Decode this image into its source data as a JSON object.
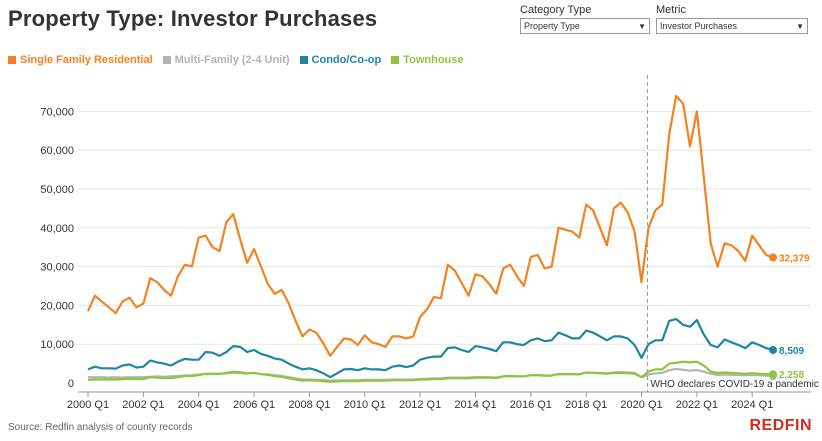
{
  "header": {
    "title": "Property Type: Investor Purchases",
    "category": {
      "label": "Category Type",
      "value": "Property Type"
    },
    "metric": {
      "label": "Metric",
      "value": "Investor Purchases"
    }
  },
  "footer": {
    "source": "Source: Redfin analysis of county records",
    "logo": "REDFIN"
  },
  "chart_data": {
    "type": "line",
    "title": "Property Type: Investor Purchases",
    "x_quarters_start": "2000 Q1",
    "x_tick_labels": [
      "2000 Q1",
      "2002 Q1",
      "2004 Q1",
      "2006 Q1",
      "2008 Q1",
      "2010 Q1",
      "2012 Q1",
      "2014 Q1",
      "2016 Q1",
      "2018 Q1",
      "2020 Q1",
      "2022 Q1",
      "2024 Q1"
    ],
    "y_ticks": [
      0,
      10000,
      20000,
      30000,
      40000,
      50000,
      60000,
      70000
    ],
    "y_tick_labels": [
      "0",
      "10,000",
      "20,000",
      "30,000",
      "40,000",
      "50,000",
      "60,000",
      "70,000"
    ],
    "ylim": [
      0,
      75000
    ],
    "legend_position": "top-left",
    "annotation": {
      "quarter": "2020 Q2",
      "text": "WHO declares COVID-19 a pandemic"
    },
    "series": [
      {
        "name": "Single Family Residential",
        "color": "#f58220",
        "end_label": "32,379",
        "values": [
          18500,
          22500,
          21000,
          19500,
          18000,
          21000,
          22000,
          19500,
          20500,
          27000,
          26000,
          24000,
          22500,
          27500,
          30500,
          30000,
          37500,
          38000,
          35000,
          34000,
          41500,
          43500,
          37000,
          31000,
          34500,
          30000,
          25500,
          23000,
          24000,
          20500,
          16000,
          12000,
          13800,
          13000,
          10200,
          7000,
          9300,
          11500,
          11200,
          9800,
          12300,
          10500,
          10000,
          9300,
          12000,
          12000,
          11500,
          12000,
          17000,
          19000,
          22200,
          21800,
          30500,
          29000,
          25800,
          22500,
          28000,
          27500,
          25500,
          23000,
          29500,
          30500,
          27500,
          25000,
          32500,
          33000,
          29500,
          30000,
          40000,
          39500,
          39000,
          37500,
          46000,
          44500,
          40000,
          35500,
          45000,
          46500,
          44000,
          39000,
          26000,
          40000,
          44500,
          46000,
          64000,
          74000,
          72000,
          61000,
          70000,
          53000,
          36000,
          30000,
          36000,
          35500,
          34000,
          31500,
          38000,
          35500,
          33000,
          32379
        ]
      },
      {
        "name": "Multi-Family (2-4 Unit)",
        "color": "#b3b3b3",
        "end_label": "",
        "values": [
          1500,
          1500,
          1500,
          1400,
          1500,
          1400,
          1500,
          1500,
          1500,
          1600,
          1700,
          1600,
          1700,
          1800,
          1900,
          2000,
          2200,
          2300,
          2300,
          2400,
          2500,
          2600,
          2500,
          2400,
          2600,
          2300,
          2200,
          2000,
          1800,
          1500,
          1200,
          900,
          900,
          800,
          800,
          600,
          700,
          700,
          700,
          700,
          800,
          800,
          800,
          800,
          900,
          900,
          900,
          900,
          1000,
          1100,
          1200,
          1200,
          1400,
          1400,
          1400,
          1400,
          1500,
          1500,
          1500,
          1400,
          1700,
          1800,
          1700,
          1700,
          2000,
          2000,
          1900,
          1900,
          2300,
          2300,
          2300,
          2300,
          2700,
          2600,
          2600,
          2500,
          2700,
          2800,
          2700,
          2600,
          1500,
          2200,
          2500,
          2600,
          3300,
          3600,
          3400,
          3200,
          3300,
          2900,
          2400,
          2100,
          2200,
          2100,
          2100,
          2000,
          2100,
          2000,
          1900,
          1800
        ]
      },
      {
        "name": "Condo/Co-op",
        "color": "#1c87a3",
        "end_label": "8,509",
        "values": [
          3500,
          4200,
          3800,
          3800,
          3700,
          4500,
          4800,
          4000,
          4200,
          5800,
          5300,
          5000,
          4500,
          5500,
          6200,
          6000,
          6000,
          8000,
          7800,
          7000,
          8000,
          9500,
          9300,
          8000,
          8500,
          7500,
          7000,
          6300,
          6000,
          5000,
          4200,
          3500,
          3800,
          3300,
          2500,
          1500,
          2500,
          3500,
          3600,
          3300,
          3800,
          3500,
          3500,
          3300,
          4200,
          4500,
          4100,
          4500,
          6000,
          6500,
          6800,
          6800,
          9000,
          9200,
          8500,
          8000,
          9500,
          9200,
          8800,
          8200,
          10500,
          10500,
          10000,
          9800,
          11000,
          11500,
          10800,
          11000,
          13000,
          12300,
          11500,
          11500,
          13500,
          13000,
          12000,
          11000,
          12000,
          12000,
          11500,
          9800,
          6500,
          10000,
          11000,
          11000,
          16000,
          16500,
          15000,
          14500,
          16200,
          12500,
          9800,
          9200,
          11200,
          10500,
          9800,
          9000,
          10500,
          9800,
          9000,
          8509
        ]
      },
      {
        "name": "Townhouse",
        "color": "#8cc63f",
        "end_label": "2,258",
        "values": [
          800,
          900,
          900,
          900,
          900,
          1000,
          1100,
          1000,
          1000,
          1500,
          1400,
          1300,
          1300,
          1500,
          1800,
          1800,
          2000,
          2400,
          2400,
          2300,
          2600,
          2900,
          2800,
          2500,
          2600,
          2300,
          2100,
          1800,
          1600,
          1200,
          900,
          600,
          700,
          600,
          500,
          300,
          400,
          500,
          500,
          500,
          600,
          600,
          600,
          600,
          700,
          700,
          700,
          700,
          900,
          900,
          1000,
          1000,
          1200,
          1200,
          1200,
          1200,
          1400,
          1400,
          1400,
          1300,
          1700,
          1800,
          1700,
          1700,
          2000,
          2000,
          1900,
          1900,
          2300,
          2300,
          2300,
          2200,
          2700,
          2600,
          2500,
          2400,
          2600,
          2600,
          2500,
          2400,
          1500,
          3000,
          3500,
          3500,
          5000,
          5200,
          5500,
          5300,
          5500,
          4500,
          3000,
          2600,
          2700,
          2600,
          2500,
          2400,
          2500,
          2400,
          2300,
          2258
        ]
      }
    ]
  }
}
